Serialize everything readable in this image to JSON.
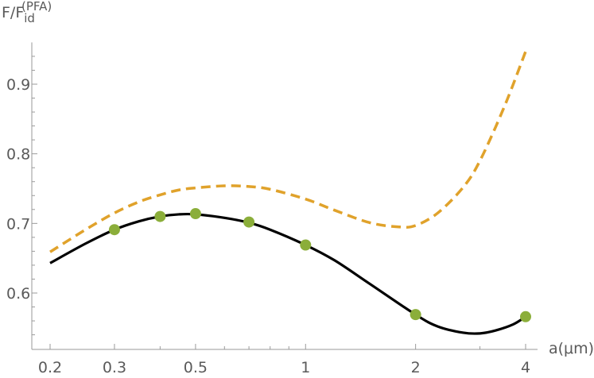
{
  "chart_data": {
    "type": "line",
    "title": "",
    "xlabel": "a(μm)",
    "ylabel": "F/F",
    "ylabel_italic": "F",
    "ylabel_subscript": "id",
    "ylabel_superscript": "(PFA)",
    "xscale": "log",
    "xlim": [
      0.19,
      4.4
    ],
    "ylim": [
      0.53,
      0.96
    ],
    "xticks": [
      {
        "value": 0.2,
        "label": "0.2"
      },
      {
        "value": 0.3,
        "label": "0.3"
      },
      {
        "value": 0.5,
        "label": "0.5"
      },
      {
        "value": 1,
        "label": "1"
      },
      {
        "value": 2,
        "label": "2"
      },
      {
        "value": 4,
        "label": "4"
      }
    ],
    "yticks": [
      {
        "value": 0.6,
        "label": "0.6"
      },
      {
        "value": 0.7,
        "label": "0.7"
      },
      {
        "value": 0.8,
        "label": "0.8"
      },
      {
        "value": 0.9,
        "label": "0.9"
      }
    ],
    "legend": "none",
    "grid": false,
    "series": [
      {
        "style": "solid",
        "color": "#000000",
        "x": [
          0.2,
          0.25,
          0.3,
          0.35,
          0.4,
          0.45,
          0.5,
          0.6,
          0.7,
          0.8,
          1.0,
          1.2,
          1.5,
          2.0,
          2.3,
          2.7,
          3.0,
          3.3,
          3.7,
          4.0
        ],
        "y": [
          0.643,
          0.671,
          0.691,
          0.703,
          0.71,
          0.713,
          0.713,
          0.708,
          0.701,
          0.691,
          0.669,
          0.647,
          0.613,
          0.569,
          0.552,
          0.543,
          0.542,
          0.546,
          0.555,
          0.566
        ]
      },
      {
        "style": "dashed",
        "color": "#E0A22B",
        "x": [
          0.2,
          0.25,
          0.3,
          0.35,
          0.4,
          0.45,
          0.5,
          0.6,
          0.7,
          0.8,
          1.0,
          1.2,
          1.5,
          1.8,
          2.0,
          2.3,
          2.7,
          3.0,
          3.5,
          4.0
        ],
        "y": [
          0.659,
          0.691,
          0.715,
          0.731,
          0.741,
          0.748,
          0.751,
          0.754,
          0.753,
          0.749,
          0.735,
          0.719,
          0.701,
          0.695,
          0.697,
          0.715,
          0.752,
          0.79,
          0.868,
          0.947
        ]
      },
      {
        "style": "markers",
        "color": "#8BAE3A",
        "x": [
          0.3,
          0.4,
          0.5,
          0.7,
          1.0,
          2.0,
          4.0
        ],
        "y": [
          0.691,
          0.71,
          0.714,
          0.702,
          0.669,
          0.569,
          0.566
        ]
      }
    ]
  }
}
